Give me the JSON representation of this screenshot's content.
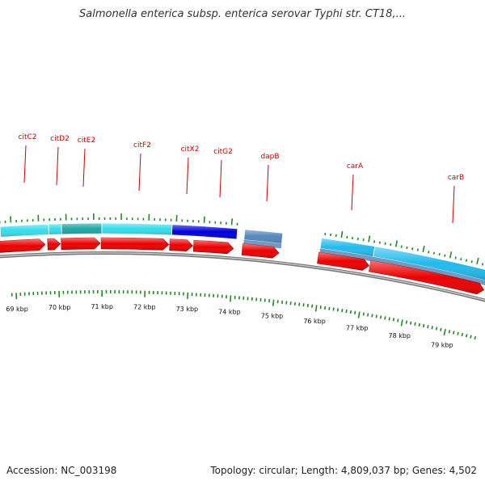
{
  "title": "Salmonella enterica subsp. enterica serovar Typhi str. CT18,...",
  "footer": {
    "accession": "Accession: NC_003198",
    "summary": "Topology: circular; Length: 4,809,037 bp; Genes: 4,502"
  },
  "colors": {
    "forward_gene": "#ee0000",
    "cyan_feature": "#33ddee",
    "teal_feature": "#20a8a8",
    "blue_feature": "#0000dd",
    "steel_feature": "#5588bb",
    "sky_feature": "#22bbee",
    "backbone": "#777777",
    "tick": "#228822",
    "label": "#cc0000"
  },
  "gene_labels": [
    "citC2",
    "citD2",
    "citE2",
    "citF2",
    "citX2",
    "citG2",
    "dapB",
    "carA",
    "carB"
  ],
  "kbp_labels": [
    "69 kbp",
    "70 kbp",
    "71 kbp",
    "72 kbp",
    "73 kbp",
    "74 kbp",
    "75 kbp",
    "76 kbp",
    "77 kbp",
    "78 kbp",
    "79 kbp"
  ]
}
